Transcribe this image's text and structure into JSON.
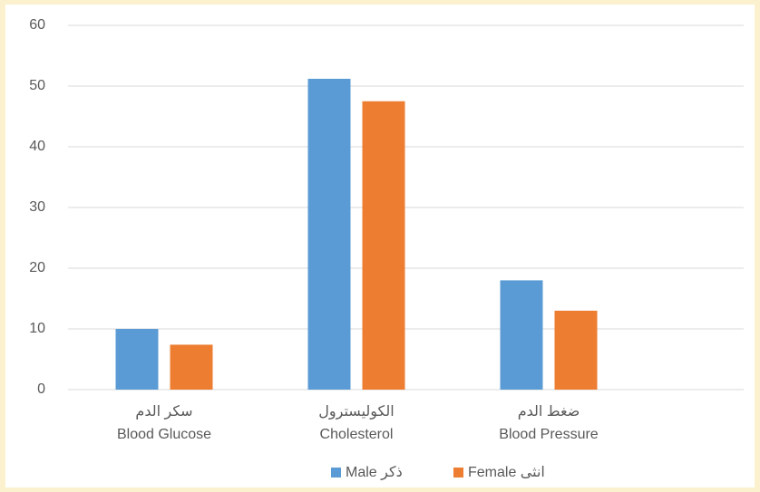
{
  "chart_data": {
    "type": "bar",
    "categories": [
      "Blood Glucose",
      "Cholesterol",
      "Blood Pressure"
    ],
    "categories_ar": [
      "سكر الدم",
      "الكوليسترول",
      "ضغط الدم"
    ],
    "series": [
      {
        "name": "Male  ذكر",
        "color": "#5b9bd5",
        "values": [
          10,
          51.2,
          18
        ]
      },
      {
        "name": "Female انثى",
        "color": "#ed7d31",
        "values": [
          7.4,
          47.5,
          13
        ]
      }
    ],
    "ylim": [
      0,
      60
    ],
    "yticks": [
      0,
      10,
      20,
      30,
      40,
      50,
      60
    ],
    "grid": true,
    "legend": "bottom"
  }
}
